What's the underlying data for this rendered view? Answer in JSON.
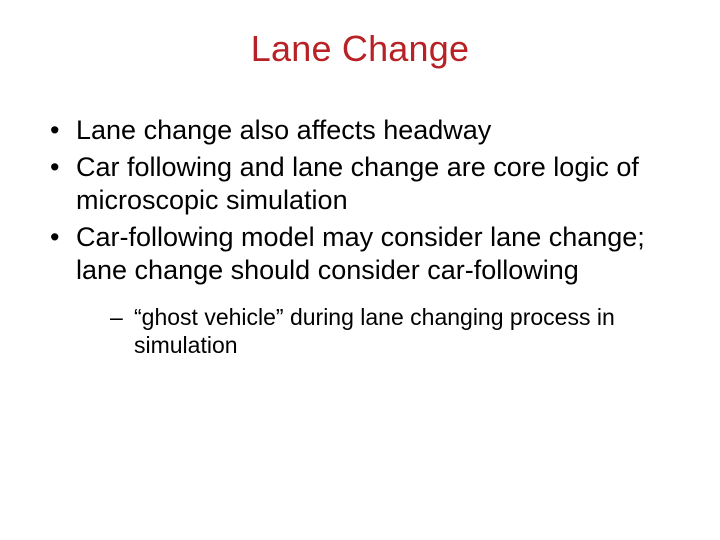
{
  "slide": {
    "title": "Lane Change",
    "title_color": "#b82125",
    "body_color": "#000000",
    "background_color": "#ffffff",
    "title_fontsize": 36,
    "bullet_fontsize": 27,
    "subbullet_fontsize": 23,
    "bullets": [
      {
        "text": "Lane change also affects headway"
      },
      {
        "text": "Car following and lane change are core logic of microscopic simulation"
      },
      {
        "text": "Car-following model may consider lane change; lane change should consider car-following",
        "sub": [
          {
            "text": "“ghost vehicle” during lane changing process in simulation"
          }
        ]
      }
    ]
  }
}
